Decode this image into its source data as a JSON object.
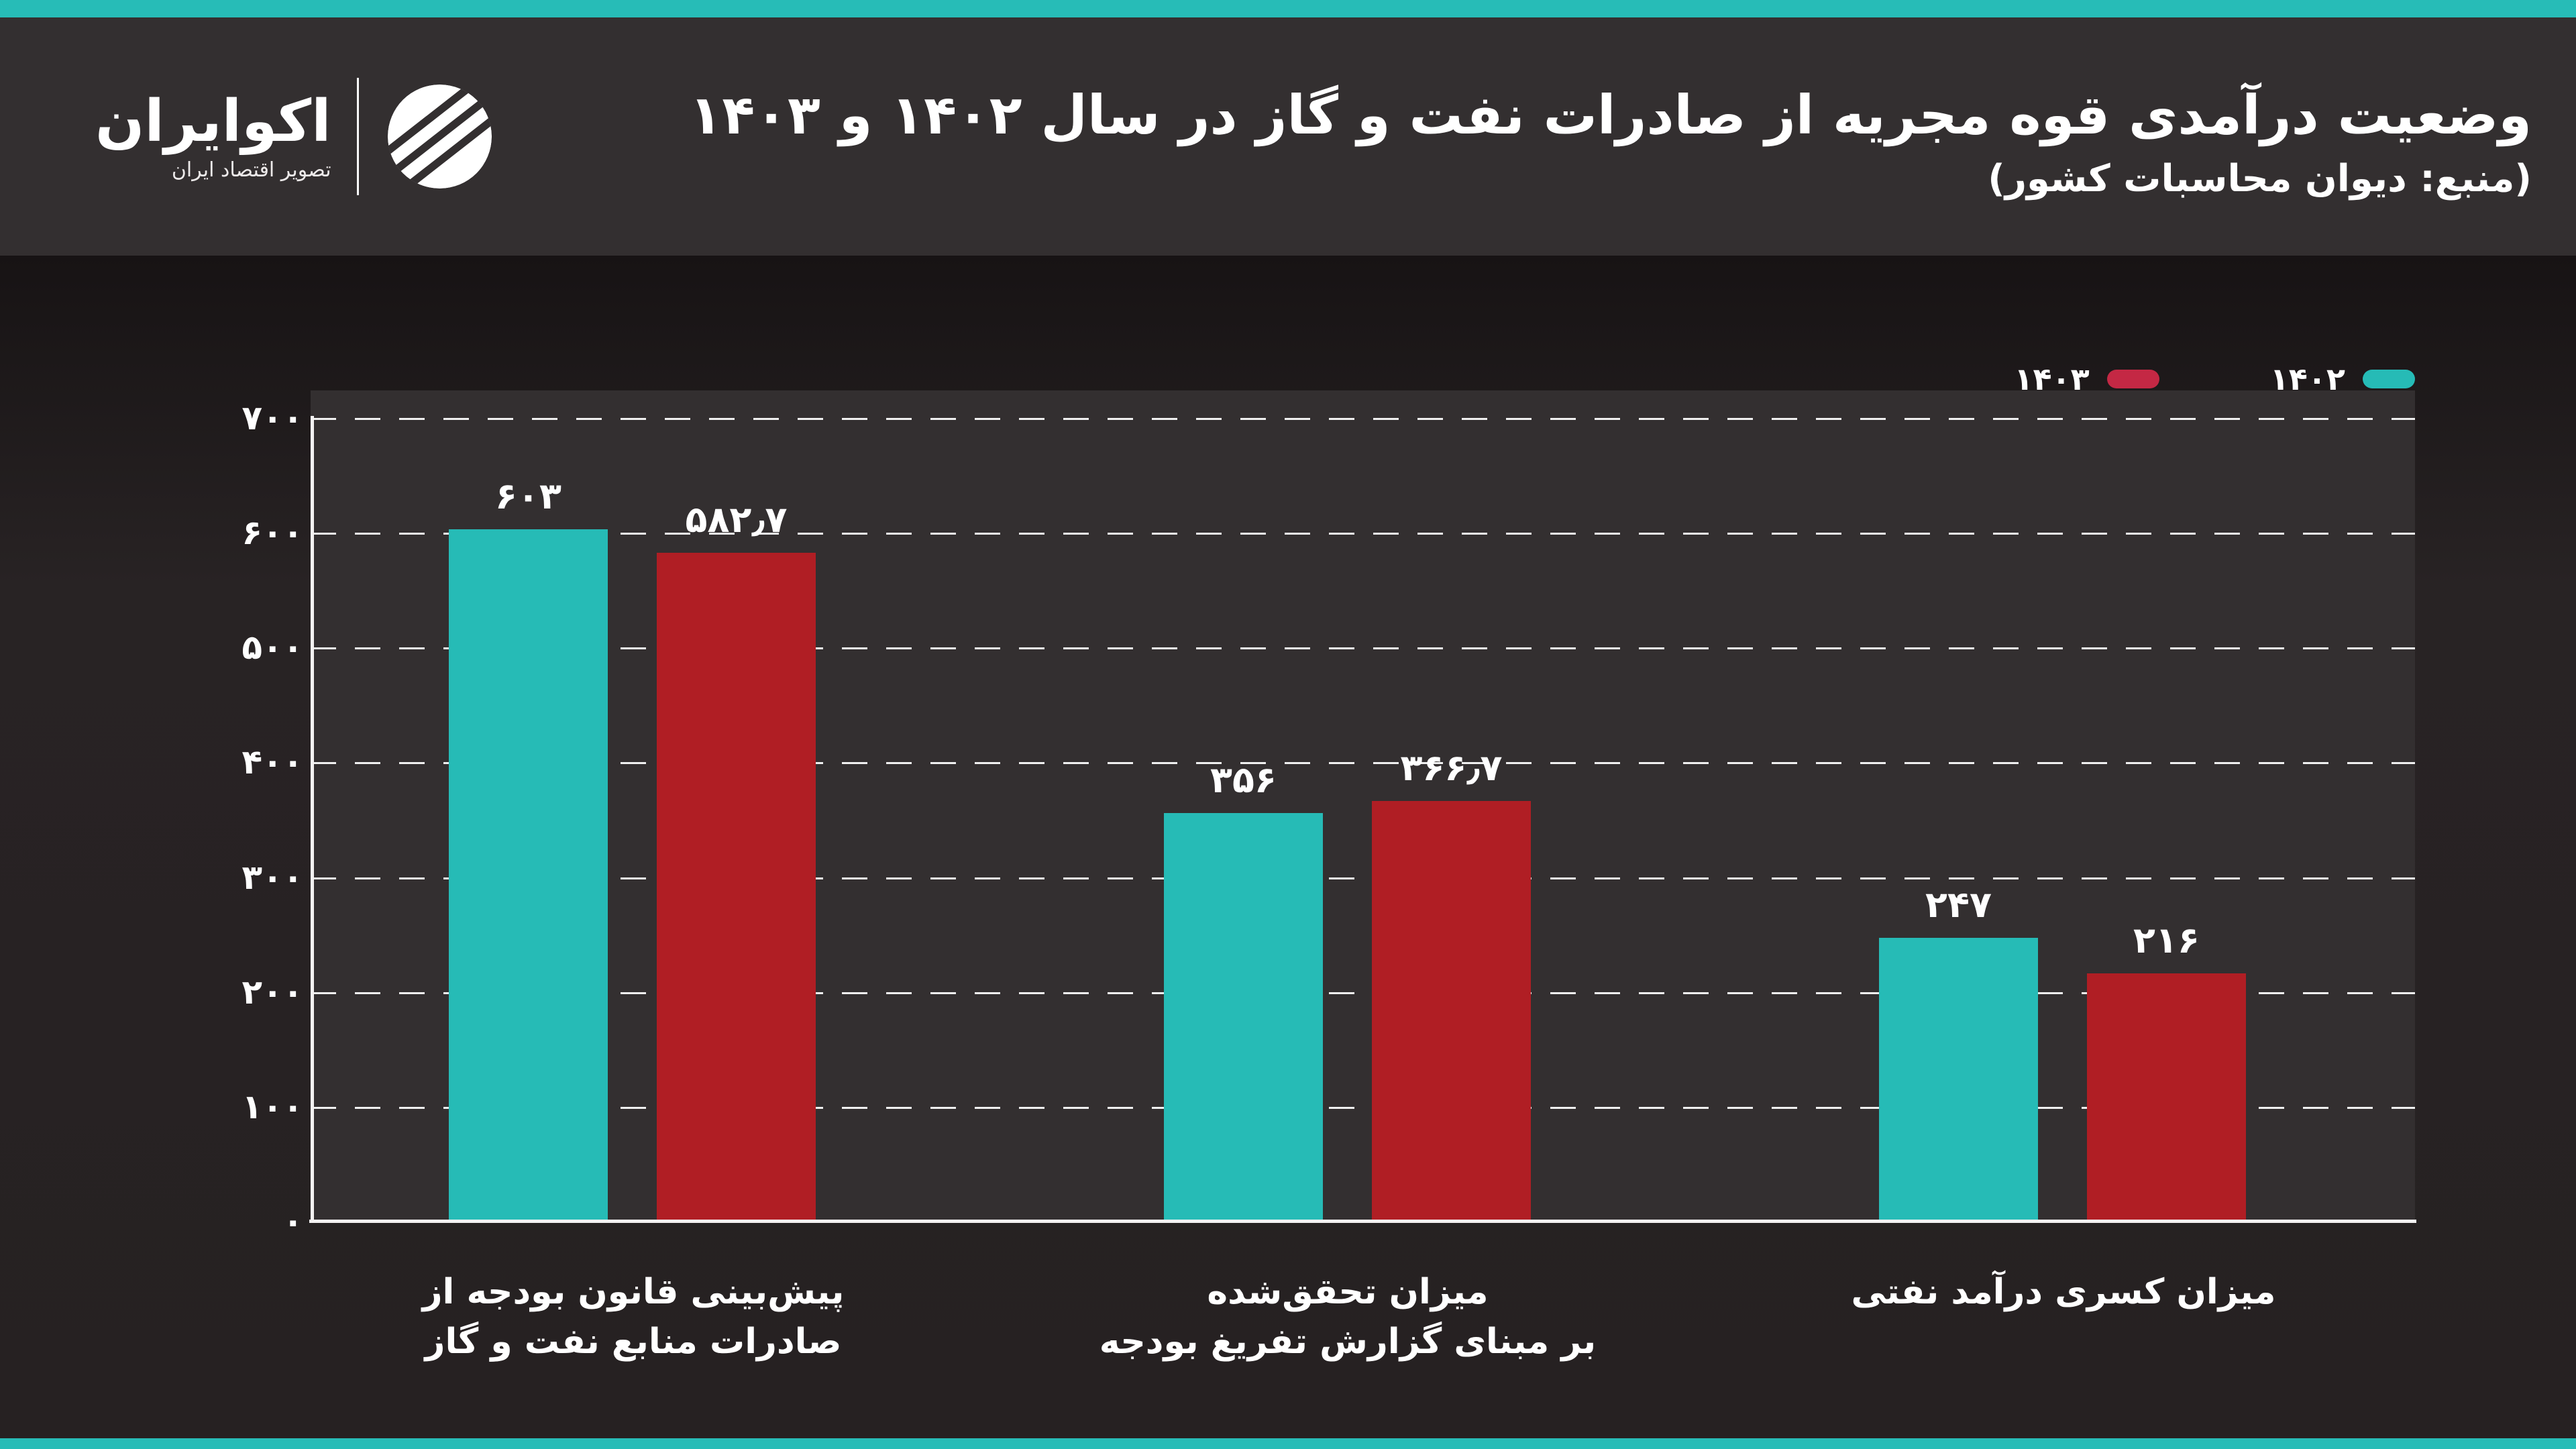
{
  "page": {
    "accent_teal": "#27BCB7",
    "header_bg": "#332F30",
    "body_bg": "#262122",
    "plot_bg": "#332F30",
    "text_color": "#FFFFFF"
  },
  "header": {
    "logo": {
      "name": "اکوایران",
      "tagline": "تصویر اقتصاد ایران"
    },
    "title": "وضعیت درآمدی قوه مجریه از صادرات نفت و گاز در سال ۱۴۰۲ و ۱۴۰۳",
    "subtitle": "(منبع: دیوان محاسبات کشور)"
  },
  "legend": {
    "items": [
      {
        "label": "۱۴۰۲",
        "color": "#26BBB6"
      },
      {
        "label": "۱۴۰۳",
        "color": "#C42844"
      }
    ]
  },
  "chart_data": {
    "type": "bar",
    "title": "وضعیت درآمدی قوه مجریه از صادرات نفت و گاز در سال ۱۴۰۲ و ۱۴۰۳",
    "source": "(منبع: دیوان محاسبات کشور)",
    "categories": [
      "پیش‌بینی قانون بودجه از صادرات منابع نفت و گاز",
      "میزان تحقق‌شده بر مبنای گزارش تفریغ بودجه",
      "میزان کسری درآمد نفتی"
    ],
    "categories_lines": [
      [
        "پیش‌بینی قانون بودجه از",
        "صادرات منابع نفت و گاز"
      ],
      [
        "میزان تحقق‌شده",
        "بر مبنای گزارش تفریغ بودجه"
      ],
      [
        "میزان کسری درآمد نفتی"
      ]
    ],
    "series": [
      {
        "name": "۱۴۰۲",
        "color": "#26BBB6",
        "values": [
          603,
          356,
          247
        ]
      },
      {
        "name": "۱۴۰۳",
        "color": "#B01E24",
        "values": [
          582.7,
          366.7,
          216
        ]
      }
    ],
    "bar_labels_fa": [
      "۶۰۳",
      "۵۸۲٫۷",
      "۳۵۶",
      "۳۶۶٫۷",
      "۲۴۷",
      "۲۱۶"
    ],
    "yticks": [
      0,
      100,
      200,
      300,
      400,
      500,
      600,
      700
    ],
    "ytick_labels_fa": [
      "۰",
      "۱۰۰",
      "۲۰۰",
      "۳۰۰",
      "۴۰۰",
      "۵۰۰",
      "۶۰۰",
      "۷۰۰"
    ],
    "ylim": [
      0,
      724
    ],
    "grid": "horizontal-dashed",
    "legend_position": "top-right"
  }
}
